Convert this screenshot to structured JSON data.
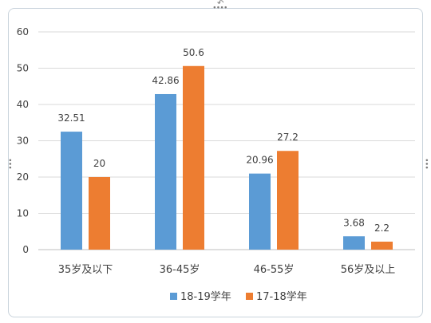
{
  "chart_data": {
    "type": "bar",
    "categories": [
      "35岁及以下",
      "36-45岁",
      "46-55岁",
      "56岁及以上"
    ],
    "series": [
      {
        "name": "18-19学年",
        "color": "#5b9bd5",
        "values": [
          32.51,
          42.86,
          20.96,
          3.68
        ]
      },
      {
        "name": "17-18学年",
        "color": "#ed7d31",
        "values": [
          20,
          50.6,
          27.2,
          2.2
        ]
      }
    ],
    "value_labels": [
      [
        "32.51",
        "42.86",
        "20.96",
        "3.68"
      ],
      [
        "20",
        "50.6",
        "27.2",
        "2.2"
      ]
    ],
    "ylim": [
      0,
      60
    ],
    "yticks": [
      0,
      10,
      20,
      30,
      40,
      50,
      60
    ],
    "grid": true,
    "legend_position": "bottom",
    "title": "",
    "xlabel": "",
    "ylabel": ""
  }
}
